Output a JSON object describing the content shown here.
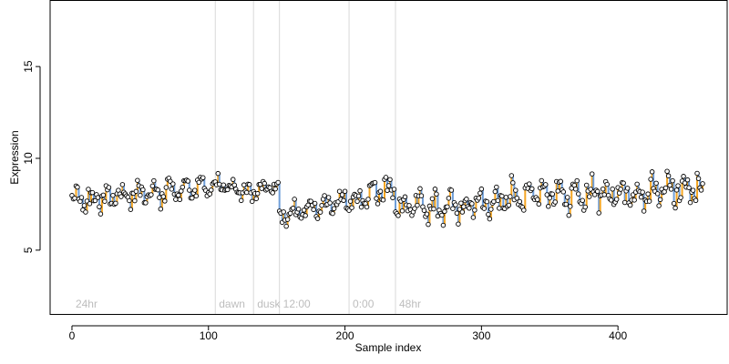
{
  "chart_data": {
    "type": "scatter",
    "title": "",
    "xlabel": "Sample index",
    "ylabel": "Expression",
    "xlim": [
      -16,
      480
    ],
    "ylim": [
      1.5,
      18.6
    ],
    "x_ticks": [
      0,
      100,
      200,
      300,
      400
    ],
    "y_ticks": [
      5,
      10,
      15
    ],
    "grid": false,
    "colors": {
      "point_fill": "#ffffff",
      "point_stroke": "#000000",
      "up_segment": "#f5a623",
      "down_segment": "#6f9ed8",
      "segment_line": "#d9d9d9",
      "segment_text": "#bdbdbd"
    },
    "segments": [
      {
        "label": "24hr",
        "x": 0,
        "boundary": null
      },
      {
        "label": "dawn",
        "x": 105,
        "boundary": 105
      },
      {
        "label": "dusk",
        "x": 133,
        "boundary": 133
      },
      {
        "label": "12:00",
        "x": 152,
        "boundary": 152
      },
      {
        "label": "0:00",
        "x": 203,
        "boundary": 203
      },
      {
        "label": "48hr",
        "x": 237,
        "boundary": 237
      }
    ],
    "series": [
      {
        "segments": [
          {
            "x_start": 0,
            "x_end": 104,
            "mean": 8.1,
            "drift": 0.9,
            "amp": 0.45,
            "noise": 0.35
          },
          {
            "x_start": 105,
            "x_end": 132,
            "mean": 8.3,
            "drift": -0.6,
            "amp": 0.3,
            "noise": 0.25
          },
          {
            "x_start": 133,
            "x_end": 151,
            "mean": 8.4,
            "drift": 0.1,
            "amp": 0.25,
            "noise": 0.2
          },
          {
            "x_start": 152,
            "x_end": 202,
            "mean": 7.3,
            "drift": 1.0,
            "amp": 0.3,
            "noise": 0.3
          },
          {
            "x_start": 203,
            "x_end": 236,
            "mean": 8.1,
            "drift": 0.8,
            "amp": 0.45,
            "noise": 0.35
          },
          {
            "x_start": 237,
            "x_end": 313,
            "mean": 7.4,
            "drift": 0.3,
            "amp": 0.45,
            "noise": 0.4
          },
          {
            "x_start": 314,
            "x_end": 462,
            "mean": 8.1,
            "drift": 0.4,
            "amp": 0.55,
            "noise": 0.45
          }
        ]
      }
    ]
  }
}
